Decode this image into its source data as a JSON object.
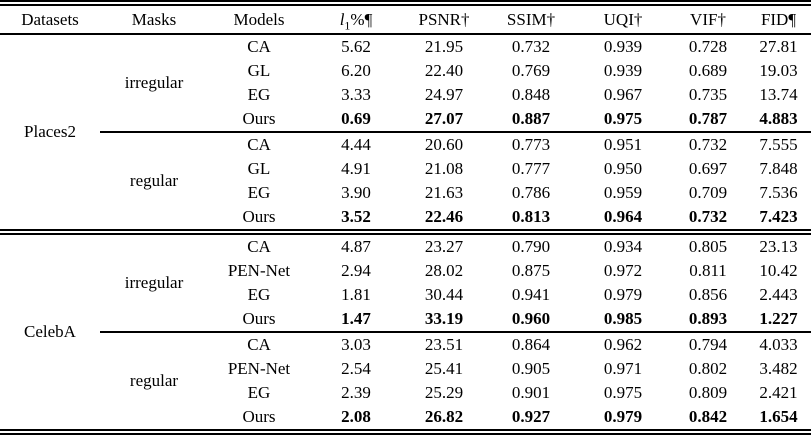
{
  "styles": {
    "background": "#ffffff",
    "text_color": "#000000",
    "rule_color": "#000000"
  },
  "chart_data": {
    "type": "table",
    "columns": [
      "Datasets",
      "Masks",
      "Models",
      "l₁%¶",
      "PSNR†",
      "SSIM†",
      "UQI†",
      "VIF†",
      "FID¶"
    ],
    "header_l1": {
      "base": "l",
      "sub": "1",
      "rest": "%¶"
    },
    "notes": "best (Ours) rows shown in bold",
    "groups": [
      {
        "dataset": "Places2",
        "mask_groups": [
          {
            "mask": "irregular",
            "rows": [
              {
                "model": "CA",
                "values": [
                  "5.62",
                  "21.95",
                  "0.732",
                  "0.939",
                  "0.728",
                  "27.81"
                ],
                "best": false
              },
              {
                "model": "GL",
                "values": [
                  "6.20",
                  "22.40",
                  "0.769",
                  "0.939",
                  "0.689",
                  "19.03"
                ],
                "best": false
              },
              {
                "model": "EG",
                "values": [
                  "3.33",
                  "24.97",
                  "0.848",
                  "0.967",
                  "0.735",
                  "13.74"
                ],
                "best": false
              },
              {
                "model": "Ours",
                "values": [
                  "0.69",
                  "27.07",
                  "0.887",
                  "0.975",
                  "0.787",
                  "4.883"
                ],
                "best": true
              }
            ]
          },
          {
            "mask": "regular",
            "rows": [
              {
                "model": "CA",
                "values": [
                  "4.44",
                  "20.60",
                  "0.773",
                  "0.951",
                  "0.732",
                  "7.555"
                ],
                "best": false
              },
              {
                "model": "GL",
                "values": [
                  "4.91",
                  "21.08",
                  "0.777",
                  "0.950",
                  "0.697",
                  "7.848"
                ],
                "best": false
              },
              {
                "model": "EG",
                "values": [
                  "3.90",
                  "21.63",
                  "0.786",
                  "0.959",
                  "0.709",
                  "7.536"
                ],
                "best": false
              },
              {
                "model": "Ours",
                "values": [
                  "3.52",
                  "22.46",
                  "0.813",
                  "0.964",
                  "0.732",
                  "7.423"
                ],
                "best": true
              }
            ]
          }
        ]
      },
      {
        "dataset": "CelebA",
        "mask_groups": [
          {
            "mask": "irregular",
            "rows": [
              {
                "model": "CA",
                "values": [
                  "4.87",
                  "23.27",
                  "0.790",
                  "0.934",
                  "0.805",
                  "23.13"
                ],
                "best": false
              },
              {
                "model": "PEN-Net",
                "values": [
                  "2.94",
                  "28.02",
                  "0.875",
                  "0.972",
                  "0.811",
                  "10.42"
                ],
                "best": false
              },
              {
                "model": "EG",
                "values": [
                  "1.81",
                  "30.44",
                  "0.941",
                  "0.979",
                  "0.856",
                  "2.443"
                ],
                "best": false
              },
              {
                "model": "Ours",
                "values": [
                  "1.47",
                  "33.19",
                  "0.960",
                  "0.985",
                  "0.893",
                  "1.227"
                ],
                "best": true
              }
            ]
          },
          {
            "mask": "regular",
            "rows": [
              {
                "model": "CA",
                "values": [
                  "3.03",
                  "23.51",
                  "0.864",
                  "0.962",
                  "0.794",
                  "4.033"
                ],
                "best": false
              },
              {
                "model": "PEN-Net",
                "values": [
                  "2.54",
                  "25.41",
                  "0.905",
                  "0.971",
                  "0.802",
                  "3.482"
                ],
                "best": false
              },
              {
                "model": "EG",
                "values": [
                  "2.39",
                  "25.29",
                  "0.901",
                  "0.975",
                  "0.809",
                  "2.421"
                ],
                "best": false
              },
              {
                "model": "Ours",
                "values": [
                  "2.08",
                  "26.82",
                  "0.927",
                  "0.979",
                  "0.842",
                  "1.654"
                ],
                "best": true
              }
            ]
          }
        ]
      }
    ]
  }
}
